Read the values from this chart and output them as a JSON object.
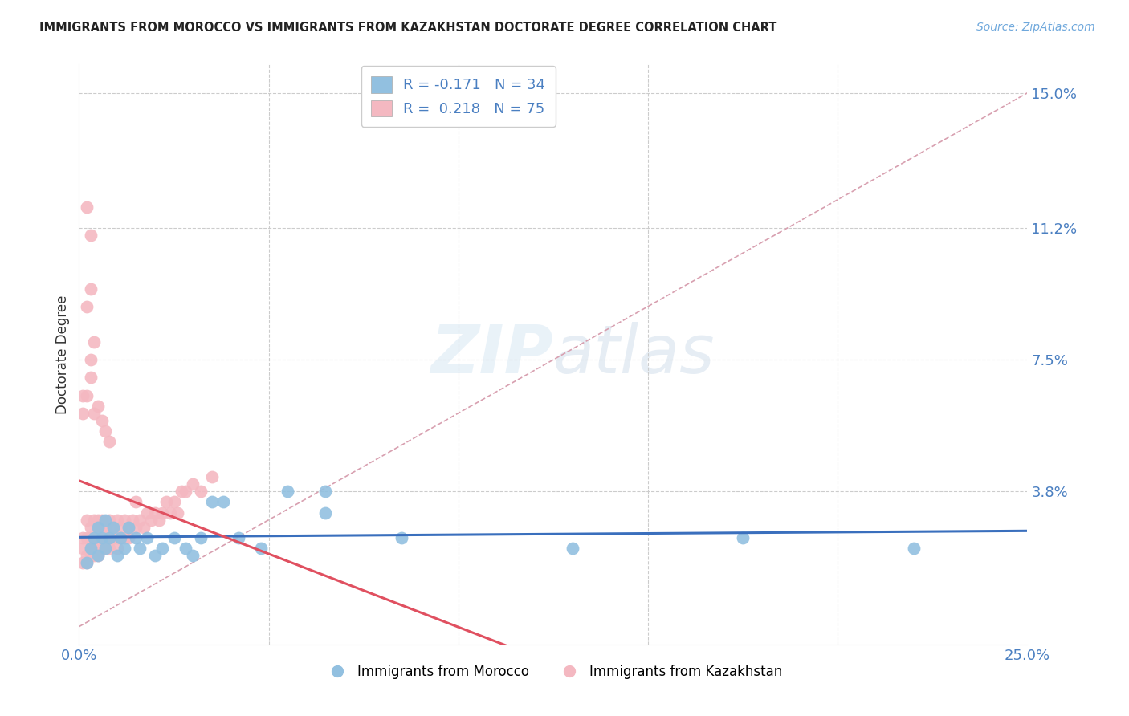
{
  "title": "IMMIGRANTS FROM MOROCCO VS IMMIGRANTS FROM KAZAKHSTAN DOCTORATE DEGREE CORRELATION CHART",
  "source": "Source: ZipAtlas.com",
  "ylabel": "Doctorate Degree",
  "xlim": [
    0.0,
    0.25
  ],
  "ylim": [
    -0.005,
    0.158
  ],
  "yticks": [
    0.0,
    0.038,
    0.075,
    0.112,
    0.15
  ],
  "ytick_labels": [
    "",
    "3.8%",
    "7.5%",
    "11.2%",
    "15.0%"
  ],
  "xticks": [
    0.0,
    0.05,
    0.1,
    0.15,
    0.2,
    0.25
  ],
  "xtick_labels": [
    "0.0%",
    "",
    "",
    "",
    "",
    "25.0%"
  ],
  "watermark_zip": "ZIP",
  "watermark_atlas": "atlas",
  "blue_color": "#92c0e0",
  "pink_color": "#f4b8c1",
  "trend_blue": "#3a6fbd",
  "trend_pink": "#e05060",
  "diag_color": "#d8a0b0",
  "legend_R_blue": "-0.171",
  "legend_N_blue": "34",
  "legend_R_pink": "0.218",
  "legend_N_pink": "75",
  "label_blue": "Immigrants from Morocco",
  "label_pink": "Immigrants from Kazakhstan",
  "blue_scatter_x": [
    0.002,
    0.003,
    0.004,
    0.005,
    0.005,
    0.006,
    0.007,
    0.007,
    0.008,
    0.009,
    0.01,
    0.011,
    0.012,
    0.013,
    0.015,
    0.016,
    0.018,
    0.02,
    0.022,
    0.025,
    0.028,
    0.03,
    0.032,
    0.035,
    0.038,
    0.042,
    0.048,
    0.055,
    0.065,
    0.065,
    0.085,
    0.13,
    0.175,
    0.22
  ],
  "blue_scatter_y": [
    0.018,
    0.022,
    0.025,
    0.02,
    0.028,
    0.025,
    0.022,
    0.03,
    0.025,
    0.028,
    0.02,
    0.025,
    0.022,
    0.028,
    0.025,
    0.022,
    0.025,
    0.02,
    0.022,
    0.025,
    0.022,
    0.02,
    0.025,
    0.035,
    0.035,
    0.025,
    0.022,
    0.038,
    0.038,
    0.032,
    0.025,
    0.022,
    0.025,
    0.022
  ],
  "pink_scatter_x": [
    0.001,
    0.001,
    0.001,
    0.002,
    0.002,
    0.002,
    0.002,
    0.003,
    0.003,
    0.003,
    0.003,
    0.004,
    0.004,
    0.004,
    0.004,
    0.005,
    0.005,
    0.005,
    0.005,
    0.005,
    0.006,
    0.006,
    0.006,
    0.006,
    0.007,
    0.007,
    0.007,
    0.008,
    0.008,
    0.008,
    0.009,
    0.009,
    0.01,
    0.01,
    0.01,
    0.011,
    0.011,
    0.012,
    0.012,
    0.013,
    0.013,
    0.014,
    0.015,
    0.015,
    0.016,
    0.017,
    0.018,
    0.019,
    0.02,
    0.021,
    0.022,
    0.023,
    0.024,
    0.025,
    0.026,
    0.027,
    0.028,
    0.03,
    0.032,
    0.035,
    0.001,
    0.002,
    0.003,
    0.004,
    0.005,
    0.006,
    0.007,
    0.008,
    0.003,
    0.004,
    0.002,
    0.003,
    0.003,
    0.002,
    0.001
  ],
  "pink_scatter_y": [
    0.018,
    0.025,
    0.022,
    0.02,
    0.025,
    0.018,
    0.03,
    0.022,
    0.025,
    0.02,
    0.028,
    0.025,
    0.022,
    0.03,
    0.02,
    0.028,
    0.025,
    0.022,
    0.03,
    0.02,
    0.028,
    0.025,
    0.022,
    0.03,
    0.028,
    0.025,
    0.022,
    0.03,
    0.025,
    0.022,
    0.028,
    0.025,
    0.03,
    0.025,
    0.022,
    0.028,
    0.025,
    0.03,
    0.025,
    0.028,
    0.025,
    0.03,
    0.035,
    0.028,
    0.03,
    0.028,
    0.032,
    0.03,
    0.032,
    0.03,
    0.032,
    0.035,
    0.032,
    0.035,
    0.032,
    0.038,
    0.038,
    0.04,
    0.038,
    0.042,
    0.06,
    0.065,
    0.07,
    0.06,
    0.062,
    0.058,
    0.055,
    0.052,
    0.075,
    0.08,
    0.09,
    0.095,
    0.11,
    0.118,
    0.065
  ]
}
